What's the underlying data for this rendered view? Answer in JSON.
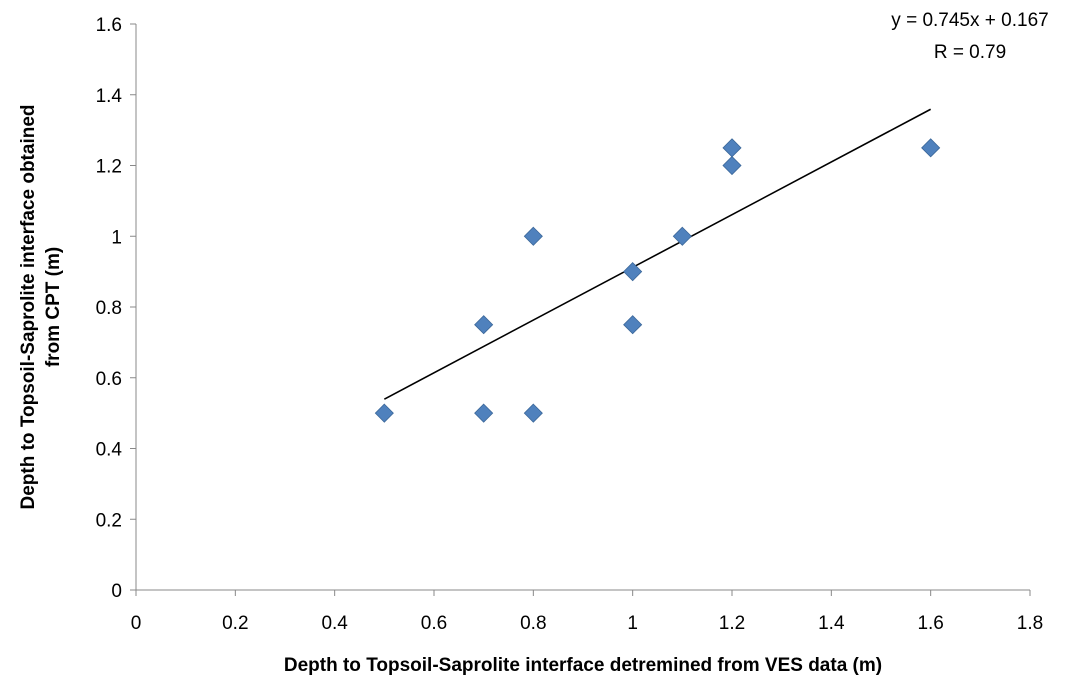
{
  "chart_data": {
    "type": "scatter",
    "title": "",
    "xlabel": "Depth to Topsoil-Saprolite interface detremined from VES data (m)",
    "ylabel_lines": [
      "Depth to Topsoil-Saprolite interface obtained",
      "from CPT (m)"
    ],
    "xlim": [
      0,
      1.8
    ],
    "ylim": [
      0,
      1.6
    ],
    "xticks": [
      "0",
      "0.2",
      "0.4",
      "0.6",
      "0.8",
      "1",
      "1.2",
      "1.4",
      "1.6",
      "1.8"
    ],
    "yticks": [
      "0",
      "0.2",
      "0.4",
      "0.6",
      "0.8",
      "1",
      "1.2",
      "1.4",
      "1.6"
    ],
    "grid": false,
    "legend": "none",
    "series": [
      {
        "marker": "diamond",
        "color": "#4F81BD",
        "points": [
          {
            "x": 0.5,
            "y": 0.5
          },
          {
            "x": 0.7,
            "y": 0.5
          },
          {
            "x": 0.7,
            "y": 0.75
          },
          {
            "x": 0.8,
            "y": 0.5
          },
          {
            "x": 0.8,
            "y": 1.0
          },
          {
            "x": 1.0,
            "y": 0.75
          },
          {
            "x": 1.0,
            "y": 0.9
          },
          {
            "x": 1.1,
            "y": 1.0
          },
          {
            "x": 1.2,
            "y": 1.2
          },
          {
            "x": 1.2,
            "y": 1.25
          },
          {
            "x": 1.6,
            "y": 1.25
          }
        ]
      }
    ],
    "trendline": {
      "type": "linear",
      "slope": 0.745,
      "intercept": 0.167,
      "x_range": [
        0.5,
        1.6
      ],
      "color": "#000000"
    },
    "annotations": [
      "y = 0.745x + 0.167",
      "R = 0.79"
    ]
  }
}
